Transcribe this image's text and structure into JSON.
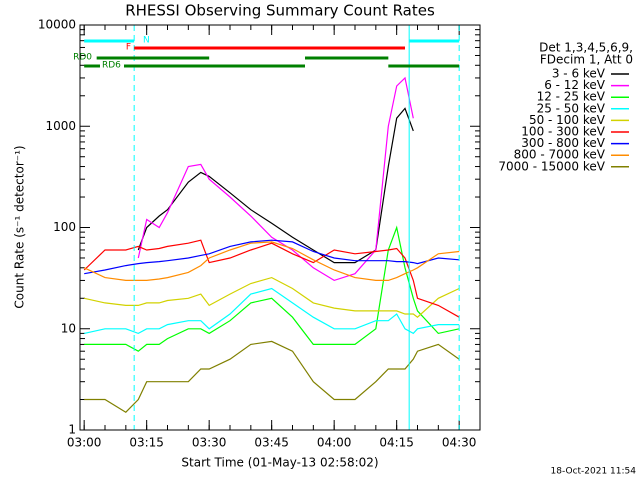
{
  "chart_data": {
    "type": "line",
    "title": "RHESSI Observing Summary Count Rates",
    "x_label": "Start Time (01-May-13 02:58:02)",
    "y_label": "Count Rate (s⁻¹ detector⁻¹)",
    "legend_title": [
      "Det 1,3,4,5,6,9,",
      "FDecim 1, Att 0"
    ],
    "footer": "18-Oct-2021 11:54",
    "log_y": true,
    "xlim": [
      "02:59",
      "04:35"
    ],
    "xticks": [
      "03:00",
      "03:15",
      "03:30",
      "03:45",
      "04:00",
      "04:15",
      "04:30"
    ],
    "ylim": [
      1,
      10000
    ],
    "yticks": [
      1,
      10,
      100,
      1000,
      10000
    ],
    "x": [
      "03:00",
      "03:05",
      "03:10",
      "03:13",
      "03:15",
      "03:18",
      "03:20",
      "03:25",
      "03:28",
      "03:30",
      "03:35",
      "03:40",
      "03:45",
      "03:50",
      "03:55",
      "04:00",
      "04:05",
      "04:10",
      "04:13",
      "04:15",
      "04:17",
      "04:19",
      "04:20",
      "04:25",
      "04:30"
    ],
    "series": [
      {
        "name": "3 - 6 keV",
        "color": "#000000",
        "values": [
          null,
          null,
          null,
          60,
          100,
          130,
          150,
          280,
          350,
          320,
          220,
          150,
          110,
          80,
          60,
          45,
          45,
          60,
          400,
          1200,
          1500,
          900,
          null,
          null,
          null
        ]
      },
      {
        "name": "6 - 12 keV",
        "color": "#ff00ff",
        "values": [
          null,
          null,
          null,
          50,
          120,
          100,
          140,
          400,
          420,
          300,
          200,
          130,
          80,
          60,
          40,
          30,
          35,
          60,
          1000,
          2500,
          3000,
          1200,
          null,
          null,
          null
        ]
      },
      {
        "name": "12 - 25 keV",
        "color": "#00ff00",
        "values": [
          7,
          7,
          7,
          6,
          7,
          7,
          8,
          10,
          10,
          9,
          12,
          18,
          20,
          13,
          7,
          7,
          7,
          10,
          60,
          100,
          40,
          20,
          15,
          9,
          10
        ]
      },
      {
        "name": "25 - 50 keV",
        "color": "#00ffff",
        "values": [
          9,
          10,
          10,
          9,
          10,
          10,
          11,
          12,
          12,
          10,
          14,
          22,
          25,
          18,
          13,
          10,
          10,
          12,
          12,
          14,
          10,
          9,
          10,
          11,
          11
        ]
      },
      {
        "name": "50 - 100 keV",
        "color": "#d2d200",
        "values": [
          20,
          18,
          17,
          17,
          18,
          18,
          19,
          20,
          22,
          17,
          22,
          28,
          32,
          25,
          18,
          16,
          15,
          15,
          15,
          15,
          14,
          14,
          13,
          20,
          25
        ]
      },
      {
        "name": "100 - 300 keV",
        "color": "#ff0000",
        "values": [
          38,
          60,
          60,
          65,
          60,
          62,
          65,
          70,
          75,
          45,
          50,
          60,
          70,
          55,
          45,
          60,
          55,
          58,
          60,
          62,
          50,
          30,
          20,
          17,
          13
        ]
      },
      {
        "name": "300 - 800 keV",
        "color": "#0000ff",
        "values": [
          35,
          38,
          42,
          44,
          45,
          46,
          47,
          50,
          53,
          55,
          65,
          72,
          75,
          72,
          58,
          50,
          47,
          47,
          47,
          46,
          46,
          45,
          44,
          50,
          48
        ]
      },
      {
        "name": "800 - 7000 keV",
        "color": "#ff8c00",
        "values": [
          40,
          32,
          30,
          30,
          30,
          31,
          32,
          36,
          42,
          50,
          60,
          70,
          72,
          62,
          48,
          38,
          32,
          30,
          30,
          32,
          35,
          38,
          40,
          55,
          58
        ]
      },
      {
        "name": "7000 - 15000 keV",
        "color": "#808000",
        "values": [
          2,
          2,
          1.5,
          2,
          3,
          3,
          3,
          3,
          4,
          4,
          5,
          7,
          7.5,
          6,
          3,
          2,
          2,
          3,
          4,
          4,
          4,
          5,
          6,
          7,
          5
        ]
      }
    ],
    "flags": [
      {
        "name": "N",
        "color": "#00ffff",
        "intervals": [
          [
            "03:00",
            "03:12"
          ],
          [
            "04:18",
            "04:30"
          ]
        ]
      },
      {
        "name": "F",
        "color": "#ff0000",
        "intervals": [
          [
            "03:12",
            "04:17"
          ]
        ]
      },
      {
        "name": "RD0",
        "color": "#008000",
        "intervals": [
          [
            "03:03",
            "03:30"
          ],
          [
            "03:53",
            "04:13"
          ]
        ]
      },
      {
        "name": "RD6",
        "color": "#008000",
        "intervals": [
          [
            "03:00",
            "03:53"
          ],
          [
            "04:13",
            "04:30"
          ]
        ]
      }
    ],
    "vlines": [
      {
        "x": "03:12",
        "dashed": true
      },
      {
        "x": "04:18",
        "dashed": false
      },
      {
        "x": "04:30",
        "dashed": true
      }
    ],
    "vline_color": "#00ffff"
  }
}
